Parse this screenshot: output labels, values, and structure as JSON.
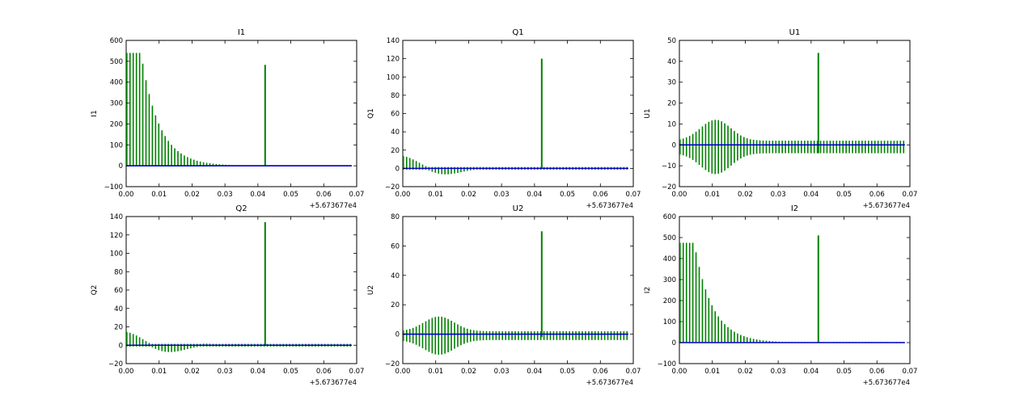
{
  "chart_data": [
    {
      "type": "line",
      "title": "I1",
      "ylabel": "I1",
      "xlim": [
        0.0,
        0.07
      ],
      "ylim": [
        -100,
        600
      ],
      "xticks": [
        0.0,
        0.01,
        0.02,
        0.03,
        0.04,
        0.05,
        0.06,
        0.07
      ],
      "xtick_labels": [
        "0.00",
        "0.01",
        "0.02",
        "0.03",
        "0.04",
        "0.05",
        "0.06",
        "0.07"
      ],
      "yticks": [
        -100,
        0,
        100,
        200,
        300,
        400,
        500,
        600
      ],
      "ytick_labels": [
        "−100",
        "0",
        "100",
        "200",
        "300",
        "400",
        "500",
        "600"
      ],
      "offset_label": "+5.673677e4",
      "grid": false,
      "envelope": {
        "type": "decay",
        "amp": 540,
        "hold": 0.0045,
        "tau": 0.0055
      },
      "spike": {
        "x": 0.0422,
        "y": 483,
        "y_min": 0
      },
      "series": [
        {
          "role": "spikes",
          "color": "#008000"
        },
        {
          "role": "baseline",
          "color": "#0000cc"
        }
      ]
    },
    {
      "type": "line",
      "title": "Q1",
      "ylabel": "Q1",
      "xlim": [
        0.0,
        0.07
      ],
      "ylim": [
        -20,
        140
      ],
      "xticks": [
        0.0,
        0.01,
        0.02,
        0.03,
        0.04,
        0.05,
        0.06,
        0.07
      ],
      "xtick_labels": [
        "0.00",
        "0.01",
        "0.02",
        "0.03",
        "0.04",
        "0.05",
        "0.06",
        "0.07"
      ],
      "yticks": [
        -20,
        0,
        20,
        40,
        60,
        80,
        100,
        120,
        140
      ],
      "ytick_labels": [
        "−20",
        "0",
        "20",
        "40",
        "60",
        "80",
        "100",
        "120",
        "140"
      ],
      "offset_label": "+5.673677e4",
      "grid": false,
      "envelope": {
        "type": "osc",
        "amp": 12,
        "decay_at": 0.024
      },
      "spike": {
        "x": 0.0422,
        "y": 120,
        "y_min": 0
      },
      "series": [
        {
          "role": "spikes",
          "color": "#008000"
        },
        {
          "role": "baseline",
          "color": "#0000cc"
        }
      ]
    },
    {
      "type": "line",
      "title": "U1",
      "ylabel": "U1",
      "xlim": [
        0.0,
        0.07
      ],
      "ylim": [
        -20,
        50
      ],
      "xticks": [
        0.0,
        0.01,
        0.02,
        0.03,
        0.04,
        0.05,
        0.06,
        0.07
      ],
      "xtick_labels": [
        "0.00",
        "0.01",
        "0.02",
        "0.03",
        "0.04",
        "0.05",
        "0.06",
        "0.07"
      ],
      "yticks": [
        -20,
        -10,
        0,
        10,
        20,
        30,
        40,
        50
      ],
      "ytick_labels": [
        "−20",
        "−10",
        "0",
        "10",
        "20",
        "30",
        "40",
        "50"
      ],
      "offset_label": "+5.673677e4",
      "grid": false,
      "envelope": {
        "type": "bell",
        "amp": 12,
        "center": 0.011,
        "width": 0.0065,
        "floor": 2
      },
      "spike": {
        "x": 0.0422,
        "y": 44,
        "y_min": -4
      },
      "series": [
        {
          "role": "spikes",
          "color": "#008000"
        },
        {
          "role": "baseline",
          "color": "#0000cc"
        }
      ]
    },
    {
      "type": "line",
      "title": "Q2",
      "ylabel": "Q2",
      "xlim": [
        0.0,
        0.07
      ],
      "ylim": [
        -20,
        140
      ],
      "xticks": [
        0.0,
        0.01,
        0.02,
        0.03,
        0.04,
        0.05,
        0.06,
        0.07
      ],
      "xtick_labels": [
        "0.00",
        "0.01",
        "0.02",
        "0.03",
        "0.04",
        "0.05",
        "0.06",
        "0.07"
      ],
      "yticks": [
        -20,
        0,
        20,
        40,
        60,
        80,
        100,
        120,
        140
      ],
      "ytick_labels": [
        "−20",
        "0",
        "20",
        "40",
        "60",
        "80",
        "100",
        "120",
        "140"
      ],
      "offset_label": "+5.673677e4",
      "grid": false,
      "envelope": {
        "type": "osc",
        "amp": 13,
        "decay_at": 0.026
      },
      "spike": {
        "x": 0.0422,
        "y": 134,
        "y_min": 0
      },
      "series": [
        {
          "role": "spikes",
          "color": "#008000"
        },
        {
          "role": "baseline",
          "color": "#0000cc"
        }
      ]
    },
    {
      "type": "line",
      "title": "U2",
      "ylabel": "U2",
      "xlim": [
        0.0,
        0.07
      ],
      "ylim": [
        -20,
        80
      ],
      "xticks": [
        0.0,
        0.01,
        0.02,
        0.03,
        0.04,
        0.05,
        0.06,
        0.07
      ],
      "xtick_labels": [
        "0.00",
        "0.01",
        "0.02",
        "0.03",
        "0.04",
        "0.05",
        "0.06",
        "0.07"
      ],
      "yticks": [
        -20,
        0,
        20,
        40,
        60,
        80
      ],
      "ytick_labels": [
        "−20",
        "0",
        "20",
        "40",
        "60",
        "80"
      ],
      "offset_label": "+5.673677e4",
      "grid": false,
      "envelope": {
        "type": "bell",
        "amp": 12,
        "center": 0.011,
        "width": 0.0065,
        "floor": 2
      },
      "spike": {
        "x": 0.0422,
        "y": 70,
        "y_min": -2
      },
      "series": [
        {
          "role": "spikes",
          "color": "#008000"
        },
        {
          "role": "baseline",
          "color": "#0000cc"
        }
      ]
    },
    {
      "type": "line",
      "title": "I2",
      "ylabel": "I2",
      "xlim": [
        0.0,
        0.07
      ],
      "ylim": [
        -100,
        600
      ],
      "xticks": [
        0.0,
        0.01,
        0.02,
        0.03,
        0.04,
        0.05,
        0.06,
        0.07
      ],
      "xtick_labels": [
        "0.00",
        "0.01",
        "0.02",
        "0.03",
        "0.04",
        "0.05",
        "0.06",
        "0.07"
      ],
      "yticks": [
        -100,
        0,
        100,
        200,
        300,
        400,
        500,
        600
      ],
      "ytick_labels": [
        "−100",
        "0",
        "100",
        "200",
        "300",
        "400",
        "500",
        "600"
      ],
      "offset_label": "+5.673677e4",
      "grid": false,
      "envelope": {
        "type": "decay",
        "amp": 475,
        "hold": 0.0045,
        "tau": 0.0055
      },
      "spike": {
        "x": 0.0422,
        "y": 510,
        "y_min": 0
      },
      "series": [
        {
          "role": "spikes",
          "color": "#008000"
        },
        {
          "role": "baseline",
          "color": "#0000cc"
        }
      ]
    }
  ]
}
